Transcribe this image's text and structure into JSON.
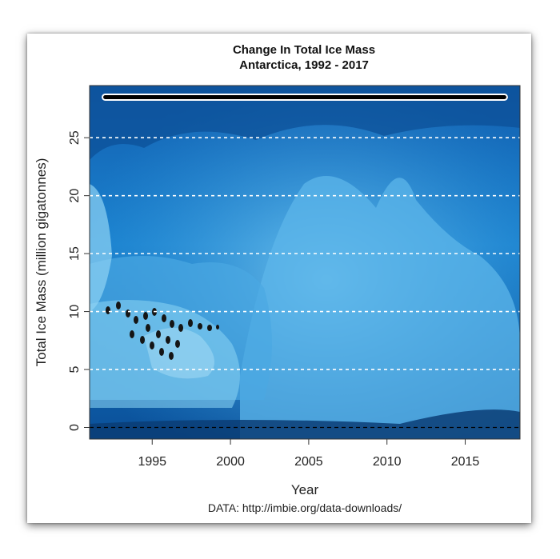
{
  "chart_data": {
    "type": "line",
    "title": "Change In Total Ice Mass",
    "subtitle": "Antarctica, 1992 - 2017",
    "xlabel": "Year",
    "ylabel": "Total Ice Mass (million gigatonnes)",
    "source": "DATA: http://imbie.org/data-downloads/",
    "xlim": [
      1991,
      2018.5
    ],
    "ylim": [
      -1,
      29.5
    ],
    "x_ticks": [
      1995,
      2000,
      2005,
      2010,
      2015
    ],
    "y_ticks": [
      0,
      5,
      10,
      15,
      20,
      25
    ],
    "grid": "horizontal-dashed",
    "background": "photo of blue glacier ice with penguins",
    "series": [
      {
        "x": [
          1992,
          2017.5
        ],
        "y": [
          28.5,
          28.5
        ],
        "color": "#000000"
      }
    ],
    "colors": {
      "line": "#000000",
      "gridline": "#ffffff",
      "zero_line": "#000000"
    }
  }
}
